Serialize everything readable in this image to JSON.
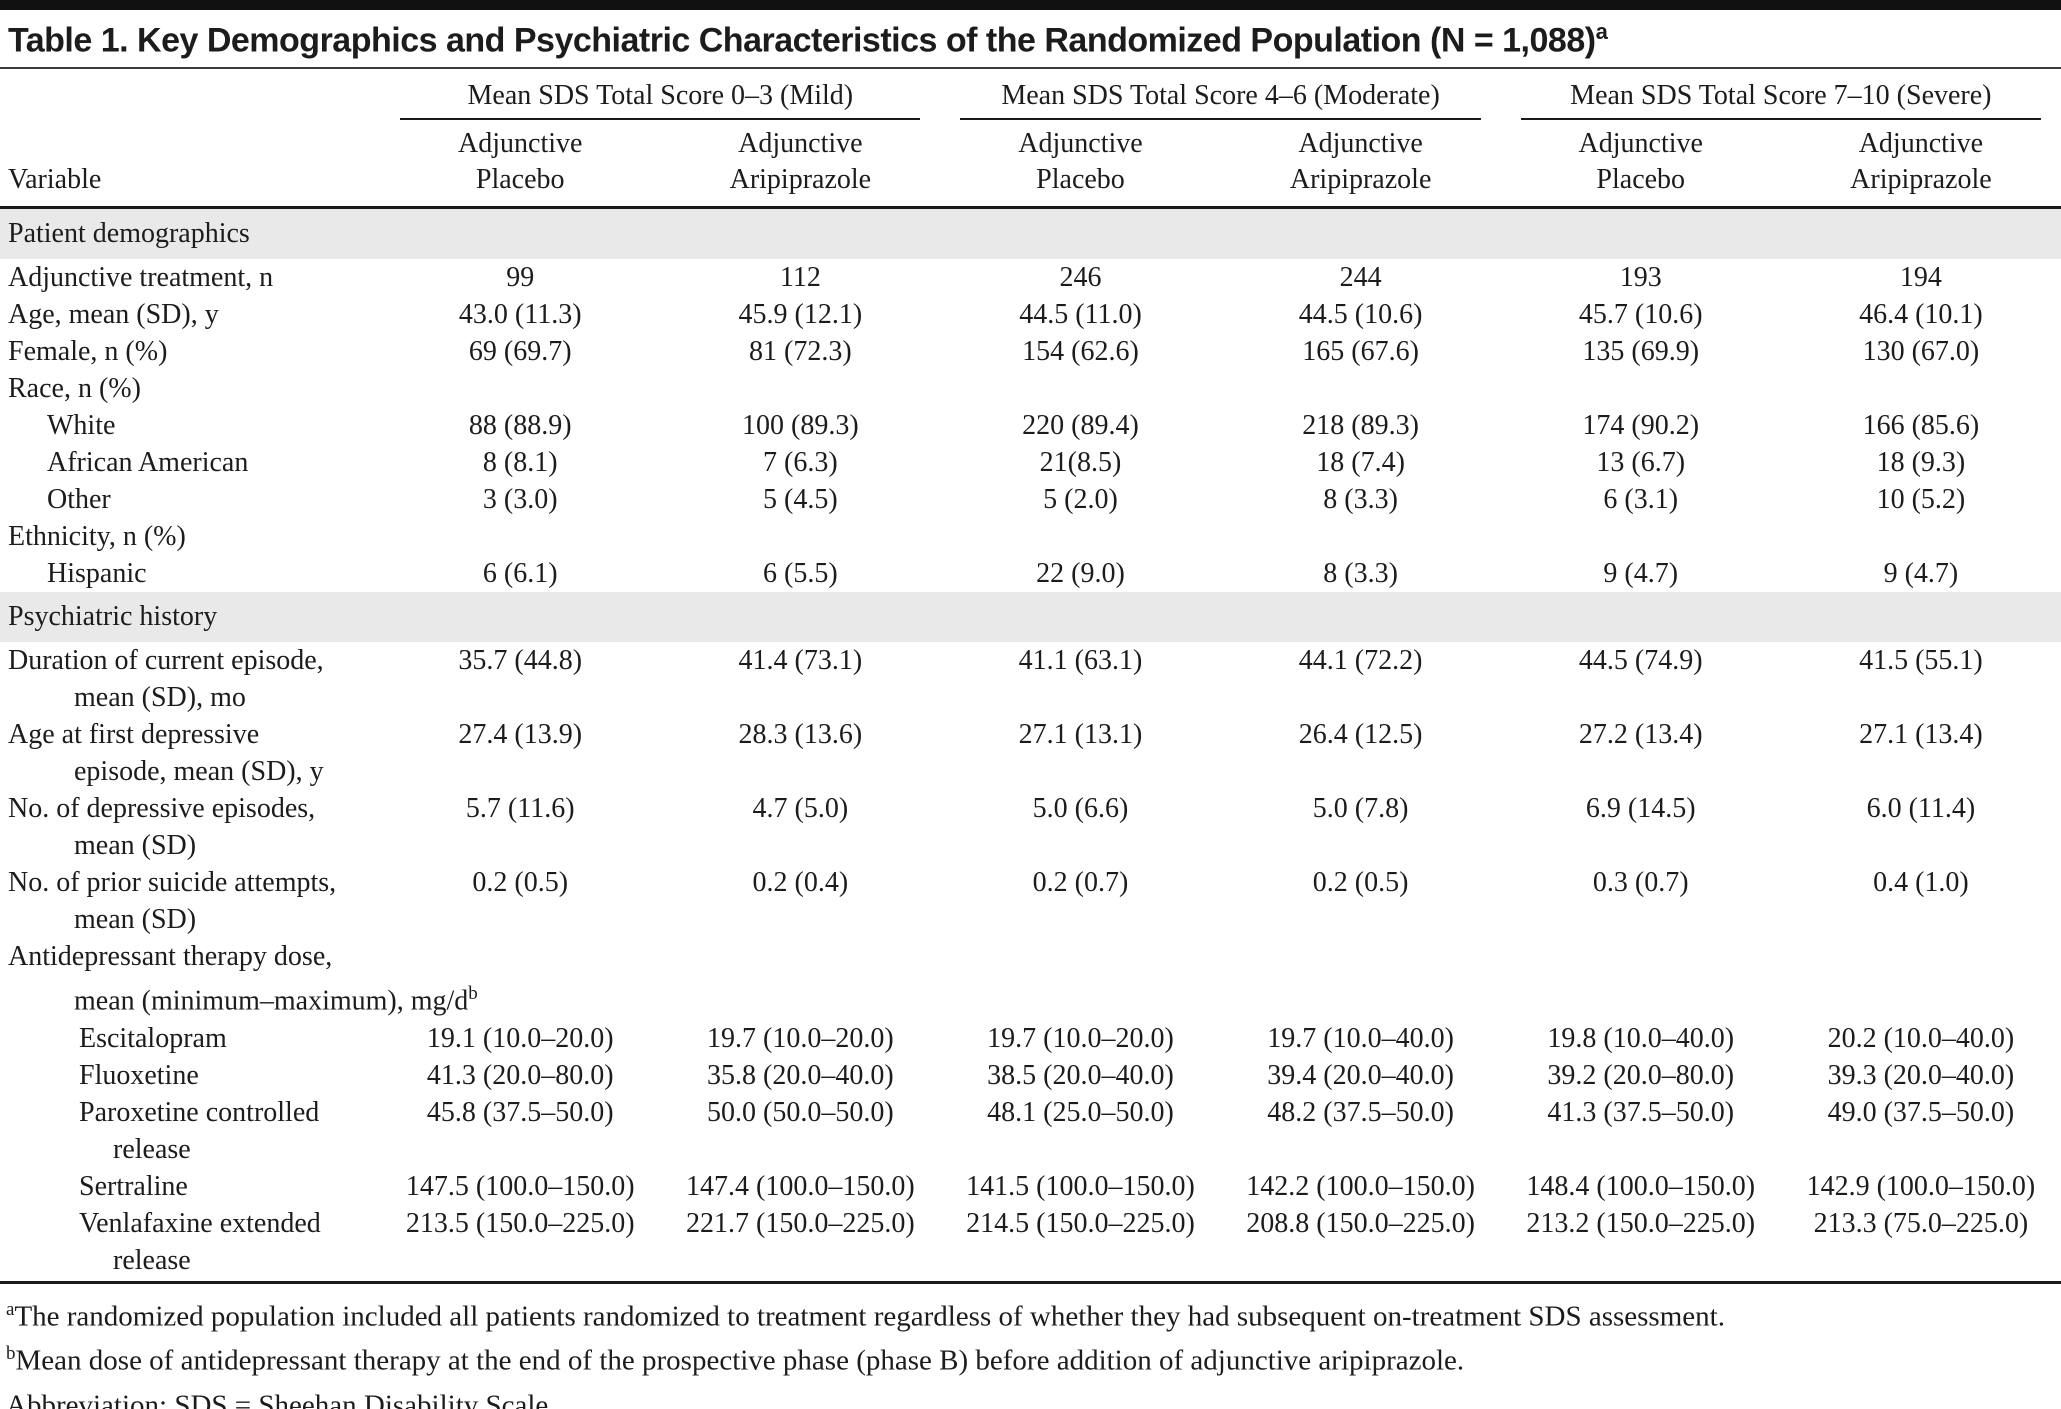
{
  "title": {
    "text": "Table 1. Key Demographics and Psychiatric Characteristics of the Randomized Population (N = 1,088)",
    "sup": "a"
  },
  "header": {
    "variable_label": "Variable",
    "groups": [
      {
        "label": "Mean SDS Total Score 0–3 (Mild)"
      },
      {
        "label": "Mean SDS Total Score 4–6 (Moderate)"
      },
      {
        "label": "Mean SDS Total Score 7–10 (Severe)"
      }
    ],
    "subcolumns": [
      {
        "line1": "Adjunctive",
        "line2": "Placebo"
      },
      {
        "line1": "Adjunctive",
        "line2": "Aripiprazole"
      },
      {
        "line1": "Adjunctive",
        "line2": "Placebo"
      },
      {
        "line1": "Adjunctive",
        "line2": "Aripiprazole"
      },
      {
        "line1": "Adjunctive",
        "line2": "Placebo"
      },
      {
        "line1": "Adjunctive",
        "line2": "Aripiprazole"
      }
    ]
  },
  "rows": [
    {
      "type": "section",
      "label": "Patient demographics"
    },
    {
      "type": "data",
      "indent": 0,
      "label_lines": [
        "Adjunctive treatment, n"
      ],
      "values": [
        "99",
        "112",
        "246",
        "244",
        "193",
        "194"
      ]
    },
    {
      "type": "data",
      "indent": 0,
      "label_lines": [
        "Age, mean (SD), y"
      ],
      "values": [
        "43.0 (11.3)",
        "45.9 (12.1)",
        "44.5 (11.0)",
        "44.5 (10.6)",
        "45.7 (10.6)",
        "46.4 (10.1)"
      ]
    },
    {
      "type": "data",
      "indent": 0,
      "label_lines": [
        "Female, n (%)"
      ],
      "values": [
        "69 (69.7)",
        "81 (72.3)",
        "154 (62.6)",
        "165 (67.6)",
        "135 (69.9)",
        "130 (67.0)"
      ]
    },
    {
      "type": "data",
      "indent": 0,
      "label_lines": [
        "Race, n (%)"
      ],
      "values": [
        "",
        "",
        "",
        "",
        "",
        ""
      ]
    },
    {
      "type": "data",
      "indent": 1,
      "label_lines": [
        "White"
      ],
      "values": [
        "88 (88.9)",
        "100 (89.3)",
        "220 (89.4)",
        "218 (89.3)",
        "174 (90.2)",
        "166 (85.6)"
      ]
    },
    {
      "type": "data",
      "indent": 1,
      "label_lines": [
        "African American"
      ],
      "values": [
        "8 (8.1)",
        "7 (6.3)",
        "21(8.5)",
        "18 (7.4)",
        "13 (6.7)",
        "18 (9.3)"
      ]
    },
    {
      "type": "data",
      "indent": 1,
      "label_lines": [
        "Other"
      ],
      "values": [
        "3 (3.0)",
        "5 (4.5)",
        "5 (2.0)",
        "8 (3.3)",
        "6 (3.1)",
        "10 (5.2)"
      ]
    },
    {
      "type": "data",
      "indent": 0,
      "label_lines": [
        "Ethnicity, n (%)"
      ],
      "values": [
        "",
        "",
        "",
        "",
        "",
        ""
      ]
    },
    {
      "type": "data",
      "indent": 1,
      "label_lines": [
        "Hispanic"
      ],
      "values": [
        "6 (6.1)",
        "6 (5.5)",
        "22 (9.0)",
        "8 (3.3)",
        "9 (4.7)",
        "9 (4.7)"
      ]
    },
    {
      "type": "section",
      "label": "Psychiatric history"
    },
    {
      "type": "data",
      "indent": 0,
      "label_lines": [
        "Duration of current episode,",
        "mean (SD), mo"
      ],
      "values": [
        "35.7 (44.8)",
        "41.4 (73.1)",
        "41.1 (63.1)",
        "44.1 (72.2)",
        "44.5 (74.9)",
        "41.5 (55.1)"
      ]
    },
    {
      "type": "data",
      "indent": 0,
      "label_lines": [
        "Age at first depressive",
        "episode, mean (SD), y"
      ],
      "values": [
        "27.4 (13.9)",
        "28.3 (13.6)",
        "27.1 (13.1)",
        "26.4 (12.5)",
        "27.2 (13.4)",
        "27.1 (13.4)"
      ]
    },
    {
      "type": "data",
      "indent": 0,
      "label_lines": [
        "No. of depressive episodes,",
        "mean (SD)"
      ],
      "values": [
        "5.7 (11.6)",
        "4.7 (5.0)",
        "5.0 (6.6)",
        "5.0 (7.8)",
        "6.9 (14.5)",
        "6.0 (11.4)"
      ]
    },
    {
      "type": "data",
      "indent": 0,
      "label_lines": [
        "No. of prior suicide attempts,",
        "mean (SD)"
      ],
      "values": [
        "0.2 (0.5)",
        "0.2 (0.4)",
        "0.2 (0.7)",
        "0.2 (0.5)",
        "0.3 (0.7)",
        "0.4 (1.0)"
      ]
    },
    {
      "type": "data",
      "indent": 0,
      "label_lines": [
        "Antidepressant therapy dose,",
        "mean (minimum–maximum), mg/d"
      ],
      "label_sup": "b",
      "values": [
        "",
        "",
        "",
        "",
        "",
        ""
      ]
    },
    {
      "type": "data",
      "indent": 2,
      "label_lines": [
        "Escitalopram"
      ],
      "values": [
        "19.1 (10.0–20.0)",
        "19.7 (10.0–20.0)",
        "19.7 (10.0–20.0)",
        "19.7 (10.0–40.0)",
        "19.8 (10.0–40.0)",
        "20.2 (10.0–40.0)"
      ]
    },
    {
      "type": "data",
      "indent": 2,
      "label_lines": [
        "Fluoxetine"
      ],
      "values": [
        "41.3 (20.0–80.0)",
        "35.8 (20.0–40.0)",
        "38.5 (20.0–40.0)",
        "39.4 (20.0–40.0)",
        "39.2 (20.0–80.0)",
        "39.3 (20.0–40.0)"
      ]
    },
    {
      "type": "data",
      "indent": 2,
      "label_lines": [
        "Paroxetine controlled",
        "release"
      ],
      "values": [
        "45.8 (37.5–50.0)",
        "50.0 (50.0–50.0)",
        "48.1 (25.0–50.0)",
        "48.2 (37.5–50.0)",
        "41.3 (37.5–50.0)",
        "49.0 (37.5–50.0)"
      ]
    },
    {
      "type": "data",
      "indent": 2,
      "label_lines": [
        "Sertraline"
      ],
      "values": [
        "147.5 (100.0–150.0)",
        "147.4 (100.0–150.0)",
        "141.5 (100.0–150.0)",
        "142.2 (100.0–150.0)",
        "148.4 (100.0–150.0)",
        "142.9 (100.0–150.0)"
      ]
    },
    {
      "type": "data",
      "indent": 2,
      "label_lines": [
        "Venlafaxine extended",
        "release"
      ],
      "values": [
        "213.5 (150.0–225.0)",
        "221.7 (150.0–225.0)",
        "214.5 (150.0–225.0)",
        "208.8 (150.0–225.0)",
        "213.2 (150.0–225.0)",
        "213.3 (75.0–225.0)"
      ]
    }
  ],
  "footnotes": [
    {
      "sup": "a",
      "text": "The randomized population included all patients randomized to treatment regardless of whether they had subsequent on-treatment SDS assessment."
    },
    {
      "sup": "b",
      "text": "Mean dose of antidepressant therapy at the end of the prospective phase (phase B) before addition of adjunctive aripiprazole."
    },
    {
      "sup": "",
      "text": "Abbreviation: SDS = Sheehan Disability Scale."
    }
  ],
  "colors": {
    "section_band_bg": "#e9e9e9",
    "rule": "#1a1a1a",
    "top_bar": "#111111"
  }
}
